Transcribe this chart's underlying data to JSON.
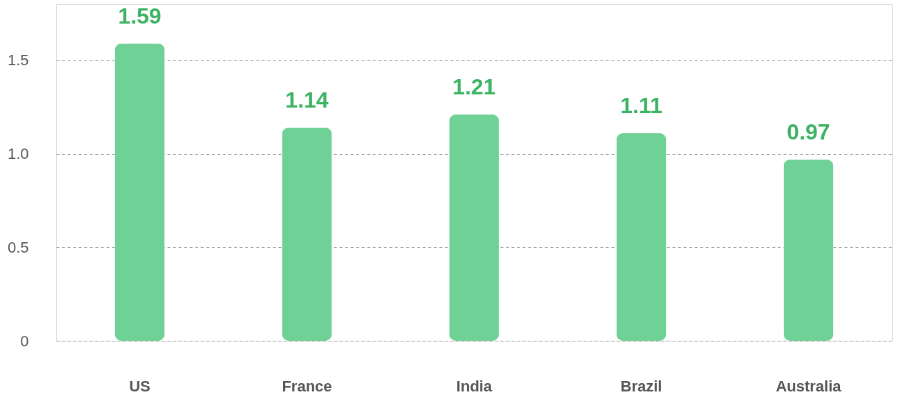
{
  "chart_data": {
    "type": "bar",
    "categories": [
      "US",
      "France",
      "India",
      "Brazil",
      "Australia"
    ],
    "values": [
      1.59,
      1.14,
      1.21,
      1.11,
      0.97
    ],
    "color": "#6fd196",
    "ylim": [
      0,
      1.8
    ],
    "yticks": [
      0,
      0.5,
      {
        "value": 1,
        "label": "1.0"
      },
      1.5
    ],
    "grid": "y",
    "data_labels": true
  }
}
